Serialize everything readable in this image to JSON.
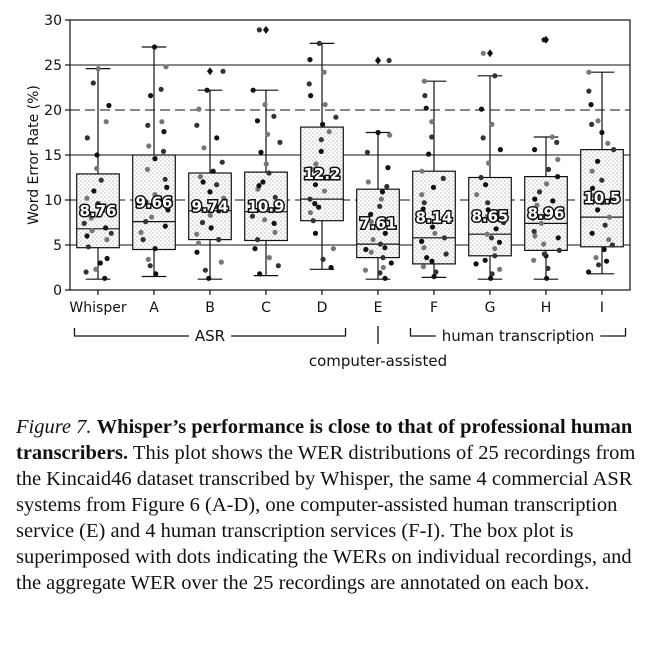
{
  "chart_data": {
    "type": "box",
    "ylabel": "Word Error Rate (%)",
    "ylim": [
      0,
      30
    ],
    "yticks": [
      0,
      5,
      10,
      15,
      20,
      25,
      30
    ],
    "reference_lines": [
      5,
      10,
      15,
      20,
      25
    ],
    "categories": [
      "Whisper",
      "A",
      "B",
      "C",
      "D",
      "E",
      "F",
      "G",
      "H",
      "I"
    ],
    "boxes": [
      {
        "label": "Whisper",
        "whislo": 1.2,
        "q1": 4.7,
        "med": 6.8,
        "q3": 12.9,
        "whishi": 24.6,
        "fliers": [],
        "aggregate": "8.76",
        "points": [
          1.3,
          2.0,
          2.3,
          3.5,
          4.8,
          5.6,
          6.0,
          6.3,
          6.6,
          6.9,
          7.4,
          8.0,
          8.8,
          9.6,
          10.2,
          11.0,
          12.2,
          13.5,
          15.0,
          16.9,
          18.7,
          20.5,
          23.0,
          24.6,
          3.0
        ]
      },
      {
        "label": "A",
        "whislo": 1.5,
        "q1": 4.5,
        "med": 7.6,
        "q3": 15.0,
        "whishi": 27.0,
        "fliers": [],
        "aggregate": "9.66",
        "points": [
          1.8,
          2.7,
          3.4,
          4.6,
          5.6,
          6.4,
          7.1,
          7.6,
          8.1,
          8.9,
          9.8,
          10.6,
          11.4,
          12.3,
          13.4,
          14.6,
          15.4,
          16.0,
          17.6,
          18.3,
          18.7,
          21.6,
          22.3,
          24.8,
          27.0
        ]
      },
      {
        "label": "B",
        "whislo": 1.2,
        "q1": 5.6,
        "med": 8.8,
        "q3": 13.0,
        "whishi": 22.2,
        "fliers": [
          24.3
        ],
        "aggregate": "9.74",
        "points": [
          1.3,
          2.2,
          3.1,
          4.2,
          5.6,
          6.2,
          6.9,
          7.5,
          8.3,
          8.8,
          9.3,
          10.2,
          10.9,
          11.7,
          12.6,
          13.2,
          14.2,
          15.8,
          16.9,
          18.3,
          20.1,
          22.2,
          24.3,
          5.2,
          12.0
        ]
      },
      {
        "label": "C",
        "whislo": 1.6,
        "q1": 5.5,
        "med": 8.7,
        "q3": 13.1,
        "whishi": 22.2,
        "fliers": [
          28.9
        ],
        "aggregate": "10.9",
        "points": [
          1.8,
          2.7,
          3.6,
          4.6,
          5.6,
          6.4,
          7.4,
          8.2,
          8.9,
          9.6,
          10.3,
          11.2,
          12.0,
          13.0,
          14.0,
          15.3,
          16.4,
          17.3,
          18.8,
          19.3,
          20.6,
          22.2,
          28.9,
          7.8,
          11.6
        ]
      },
      {
        "label": "D",
        "whislo": 2.3,
        "q1": 7.7,
        "med": 10.1,
        "q3": 18.1,
        "whishi": 27.4,
        "fliers": [],
        "aggregate": "12.2",
        "points": [
          2.5,
          3.4,
          4.6,
          6.3,
          7.7,
          8.6,
          9.2,
          10.1,
          11.0,
          11.7,
          12.9,
          14.0,
          15.4,
          16.7,
          17.6,
          18.4,
          19.2,
          20.6,
          21.6,
          22.9,
          24.2,
          25.6,
          27.4,
          13.4,
          9.6
        ]
      },
      {
        "label": "E",
        "whislo": 1.2,
        "q1": 3.6,
        "med": 5.1,
        "q3": 11.2,
        "whishi": 17.5,
        "fliers": [
          25.5
        ],
        "aggregate": "7.61",
        "points": [
          1.3,
          1.9,
          2.5,
          3.0,
          3.6,
          4.2,
          4.7,
          5.1,
          5.6,
          6.3,
          6.9,
          7.6,
          8.4,
          9.3,
          10.1,
          10.9,
          11.5,
          12.0,
          13.6,
          15.3,
          17.2,
          17.5,
          25.5,
          2.2,
          4.5
        ]
      },
      {
        "label": "F",
        "whislo": 1.4,
        "q1": 2.9,
        "med": 5.8,
        "q3": 13.2,
        "whishi": 23.2,
        "fliers": [],
        "aggregate": "8.14",
        "points": [
          1.5,
          2.0,
          2.6,
          3.2,
          4.0,
          4.7,
          5.4,
          5.8,
          6.3,
          7.0,
          7.6,
          8.4,
          9.0,
          9.7,
          10.6,
          11.4,
          12.4,
          13.2,
          15.1,
          17.0,
          18.7,
          20.2,
          21.6,
          23.2,
          3.6
        ]
      },
      {
        "label": "G",
        "whislo": 1.2,
        "q1": 3.8,
        "med": 6.2,
        "q3": 12.5,
        "whishi": 23.8,
        "fliers": [
          26.3
        ],
        "aggregate": "8.65",
        "points": [
          1.3,
          1.8,
          2.3,
          2.9,
          3.8,
          4.6,
          5.3,
          5.8,
          6.2,
          6.8,
          7.5,
          8.2,
          8.9,
          9.7,
          10.6,
          11.7,
          12.5,
          14.1,
          15.6,
          16.9,
          18.4,
          20.1,
          23.8,
          26.3,
          3.3
        ]
      },
      {
        "label": "H",
        "whislo": 1.2,
        "q1": 4.4,
        "med": 7.4,
        "q3": 12.6,
        "whishi": 17.0,
        "fliers": [
          27.8
        ],
        "aggregate": "8.96",
        "points": [
          1.3,
          2.4,
          3.3,
          3.8,
          4.4,
          5.1,
          5.8,
          6.5,
          7.4,
          8.0,
          8.7,
          9.4,
          10.1,
          10.9,
          11.8,
          12.6,
          13.4,
          14.5,
          15.6,
          16.4,
          17.0,
          27.8,
          4.0,
          6.0,
          9.9
        ]
      },
      {
        "label": "I",
        "whislo": 1.8,
        "q1": 4.8,
        "med": 8.1,
        "q3": 15.6,
        "whishi": 24.2,
        "fliers": [],
        "aggregate": "10.5",
        "points": [
          2.0,
          2.8,
          3.6,
          4.5,
          5.0,
          5.6,
          6.3,
          7.2,
          8.1,
          8.9,
          9.7,
          10.5,
          11.3,
          12.2,
          13.2,
          14.3,
          15.6,
          16.3,
          17.5,
          18.4,
          18.8,
          20.6,
          22.1,
          24.2,
          3.2
        ]
      }
    ],
    "groups": [
      {
        "label": "ASR",
        "from": "Whisper",
        "to": "D"
      },
      {
        "label": "computer-assisted",
        "from": "E",
        "to": "E"
      },
      {
        "label": "human transcription",
        "from": "F",
        "to": "I"
      }
    ]
  },
  "caption": {
    "figure_label": "Figure 7.",
    "lead": "Whisper’s performance is close to that of professional human transcribers.",
    "body": "This plot shows the WER distributions of 25 recordings from the Kincaid46 dataset transcribed by Whisper, the same 4 commercial ASR systems from Figure 6 (A-D), one computer-assisted human transcription service (E) and 4 human transcription services (F-I). The box plot is superimposed with dots indicating the WERs on individual recordings, and the aggregate WER over the 25 recordings are annotated on each box."
  }
}
